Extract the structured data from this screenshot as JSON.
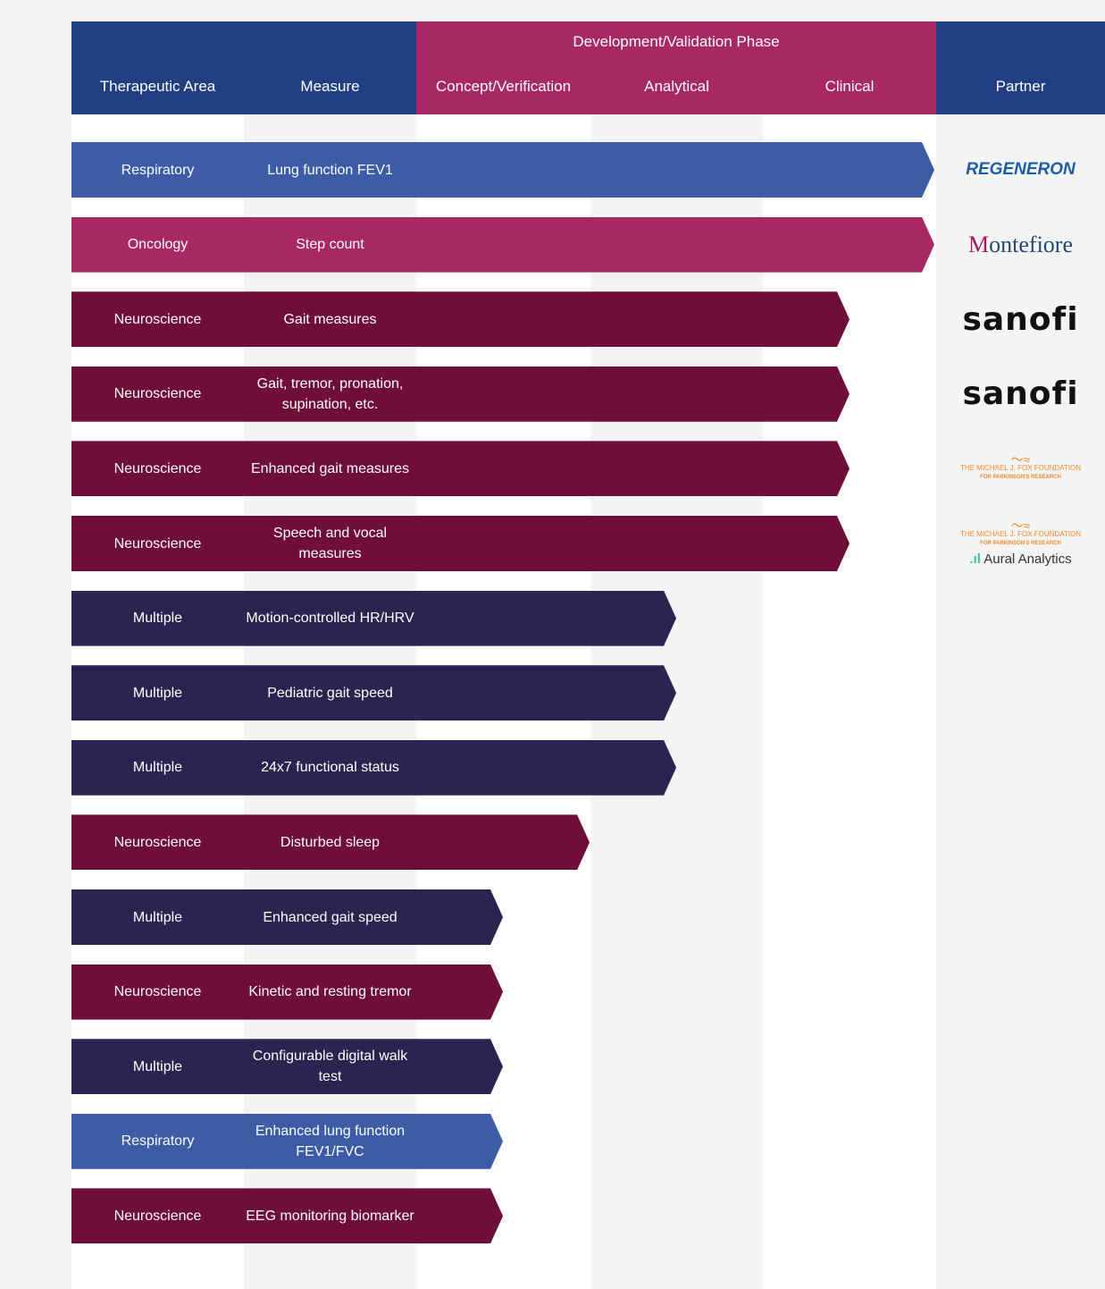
{
  "header": {
    "therapeutic_area": "Therapeutic Area",
    "measure": "Measure",
    "phase_group": "Development/Validation Phase",
    "phases": [
      "Concept/Verification",
      "Analytical",
      "Clinical"
    ],
    "partner": "Partner"
  },
  "colors": {
    "header_blue": "#213f82",
    "header_magenta": "#a82866",
    "Respiratory": "#3d5ca8",
    "Oncology": "#a82866",
    "Neuroscience": "#6e0e39",
    "Multiple": "#2a2450"
  },
  "rows": [
    {
      "area": "Respiratory",
      "measure": "Lung function FEV1",
      "phase_progress": 3.0,
      "partners": [
        "REGENERON"
      ]
    },
    {
      "area": "Oncology",
      "measure": "Step count",
      "phase_progress": 3.0,
      "partners": [
        "Montefiore"
      ]
    },
    {
      "area": "Neuroscience",
      "measure": "Gait measures",
      "phase_progress": 2.5,
      "partners": [
        "sanofi"
      ]
    },
    {
      "area": "Neuroscience",
      "measure": "Gait, tremor, pronation, supination, etc.",
      "phase_progress": 2.5,
      "partners": [
        "sanofi"
      ]
    },
    {
      "area": "Neuroscience",
      "measure": "Enhanced gait measures",
      "phase_progress": 2.5,
      "partners": [
        "THE MICHAEL J. FOX FOUNDATION FOR PARKINSON'S RESEARCH"
      ]
    },
    {
      "area": "Neuroscience",
      "measure": "Speech and vocal measures",
      "phase_progress": 2.5,
      "partners": [
        "THE MICHAEL J. FOX FOUNDATION FOR PARKINSON'S RESEARCH",
        "Aural Analytics"
      ]
    },
    {
      "area": "Multiple",
      "measure": "Motion-controlled HR/HRV",
      "phase_progress": 1.5,
      "partners": []
    },
    {
      "area": "Multiple",
      "measure": "Pediatric gait speed",
      "phase_progress": 1.5,
      "partners": []
    },
    {
      "area": "Multiple",
      "measure": "24x7 functional status",
      "phase_progress": 1.5,
      "partners": []
    },
    {
      "area": "Neuroscience",
      "measure": "Disturbed sleep",
      "phase_progress": 1.0,
      "partners": []
    },
    {
      "area": "Multiple",
      "measure": "Enhanced gait speed",
      "phase_progress": 0.5,
      "partners": []
    },
    {
      "area": "Neuroscience",
      "measure": "Kinetic and resting tremor",
      "phase_progress": 0.5,
      "partners": []
    },
    {
      "area": "Multiple",
      "measure": "Configurable digital walk test",
      "phase_progress": 0.5,
      "partners": []
    },
    {
      "area": "Respiratory",
      "measure": "Enhanced lung function FEV1/FVC",
      "phase_progress": 0.5,
      "partners": []
    },
    {
      "area": "Neuroscience",
      "measure": "EEG monitoring biomarker",
      "phase_progress": 0.5,
      "partners": []
    }
  ]
}
